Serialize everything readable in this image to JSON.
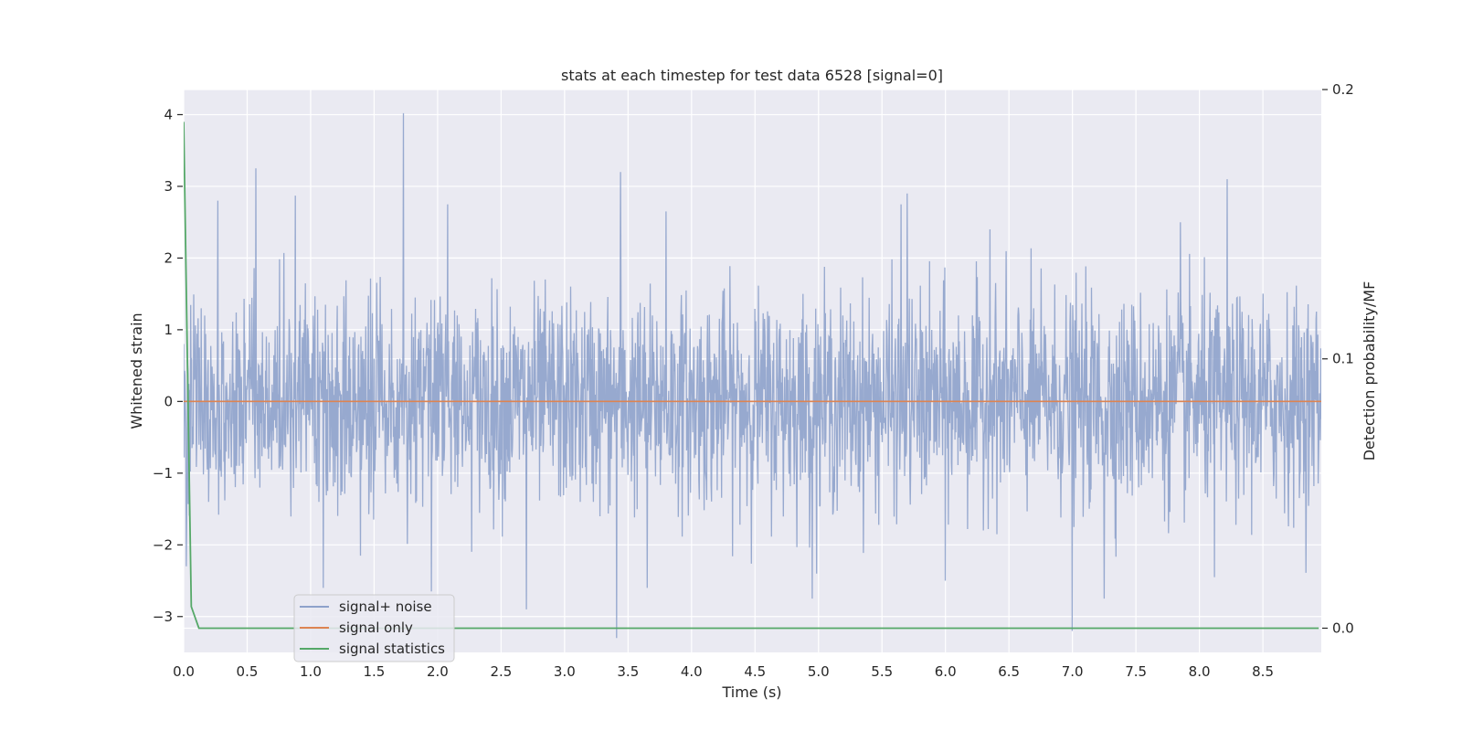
{
  "chart_data": {
    "type": "line",
    "title": "stats at each timestep for test data 6528 [signal=0]",
    "xlabel": "Time (s)",
    "ylabel": "Whitened strain",
    "ylabel_right": "Detection probability/MF",
    "xlim": [
      0,
      8.96
    ],
    "ylim": [
      -3.5,
      4.35
    ],
    "ylim_right": [
      -0.009,
      0.2
    ],
    "x_ticks": [
      0.0,
      0.5,
      1.0,
      1.5,
      2.0,
      2.5,
      3.0,
      3.5,
      4.0,
      4.5,
      5.0,
      5.5,
      6.0,
      6.5,
      7.0,
      7.5,
      8.0,
      8.5
    ],
    "x_tick_labels": [
      "0.0",
      "0.5",
      "1.0",
      "1.5",
      "2.0",
      "2.5",
      "3.0",
      "3.5",
      "4.0",
      "4.5",
      "5.0",
      "5.5",
      "6.0",
      "6.5",
      "7.0",
      "7.5",
      "8.0",
      "8.5"
    ],
    "y_ticks": [
      4,
      3,
      2,
      1,
      0,
      -1,
      -2,
      -3
    ],
    "y_tick_labels": [
      "4",
      "3",
      "2",
      "1",
      "0",
      "−1",
      "−2",
      "−3"
    ],
    "y_ticks_right": [
      0.2,
      0.1,
      0.0
    ],
    "y_tick_labels_right": [
      "0.2",
      "0.1",
      "0.0"
    ],
    "grid": true,
    "legend_position": "lower-left",
    "series": [
      {
        "name": "signal+ noise",
        "axis": "left",
        "color": "#8ea2cb",
        "noise_std": 0.72,
        "x_range": [
          0,
          8.96
        ],
        "peaks": [
          {
            "x": 0.57,
            "y": 3.25
          },
          {
            "x": 1.73,
            "y": 4.02
          },
          {
            "x": 3.44,
            "y": 3.2
          },
          {
            "x": 8.22,
            "y": 3.1
          },
          {
            "x": 5.7,
            "y": 2.9
          },
          {
            "x": 0.27,
            "y": 2.8
          },
          {
            "x": 0.88,
            "y": 2.87
          },
          {
            "x": 2.08,
            "y": 2.75
          },
          {
            "x": 3.8,
            "y": 2.65
          },
          {
            "x": 5.65,
            "y": 2.75
          },
          {
            "x": 6.35,
            "y": 2.4
          },
          {
            "x": 7.85,
            "y": 2.5
          },
          {
            "x": 3.41,
            "y": -3.3
          },
          {
            "x": 7.0,
            "y": -3.2
          },
          {
            "x": 1.95,
            "y": -2.65
          },
          {
            "x": 2.7,
            "y": -2.9
          },
          {
            "x": 4.95,
            "y": -2.75
          },
          {
            "x": 7.25,
            "y": -2.75
          },
          {
            "x": 1.1,
            "y": -2.6
          },
          {
            "x": 6.0,
            "y": -2.5
          },
          {
            "x": 3.65,
            "y": -2.6
          },
          {
            "x": 8.12,
            "y": -2.45
          },
          {
            "x": 0.02,
            "y": -2.3
          }
        ]
      },
      {
        "name": "signal only",
        "axis": "left",
        "color": "#dd8452",
        "x": [
          0,
          8.96
        ],
        "y": [
          0,
          0
        ]
      },
      {
        "name": "signal statistics",
        "axis": "right",
        "color": "#55a868",
        "x": [
          0,
          0.06,
          0.12,
          8.94
        ],
        "y": [
          0.188,
          0.008,
          0.0,
          0.0
        ]
      }
    ]
  }
}
